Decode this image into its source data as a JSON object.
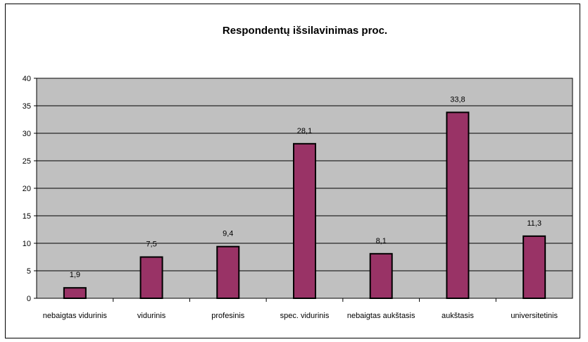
{
  "chart_data": {
    "type": "bar",
    "title": "Respondentų išsilavinimas proc.",
    "xlabel": "",
    "ylabel": "",
    "ylim": [
      0,
      40
    ],
    "yticks": [
      0,
      5,
      10,
      15,
      20,
      25,
      30,
      35,
      40
    ],
    "categories": [
      "nebaigtas vidurinis",
      "vidurinis",
      "profesinis",
      "spec. vidurinis",
      "nebaigtas aukštasis",
      "aukštasis",
      "universitetinis"
    ],
    "values": [
      1.9,
      7.5,
      9.4,
      28.1,
      8.1,
      33.8,
      11.3
    ],
    "data_labels": [
      "1,9",
      "7,5",
      "9,4",
      "28,1",
      "8,1",
      "33,8",
      "11,3"
    ],
    "grid": true,
    "legend": "none",
    "colors": {
      "bar_fill": "#993366",
      "plot_background": "#c0c0c0",
      "grid": "#000000",
      "frame": "#000000"
    }
  }
}
